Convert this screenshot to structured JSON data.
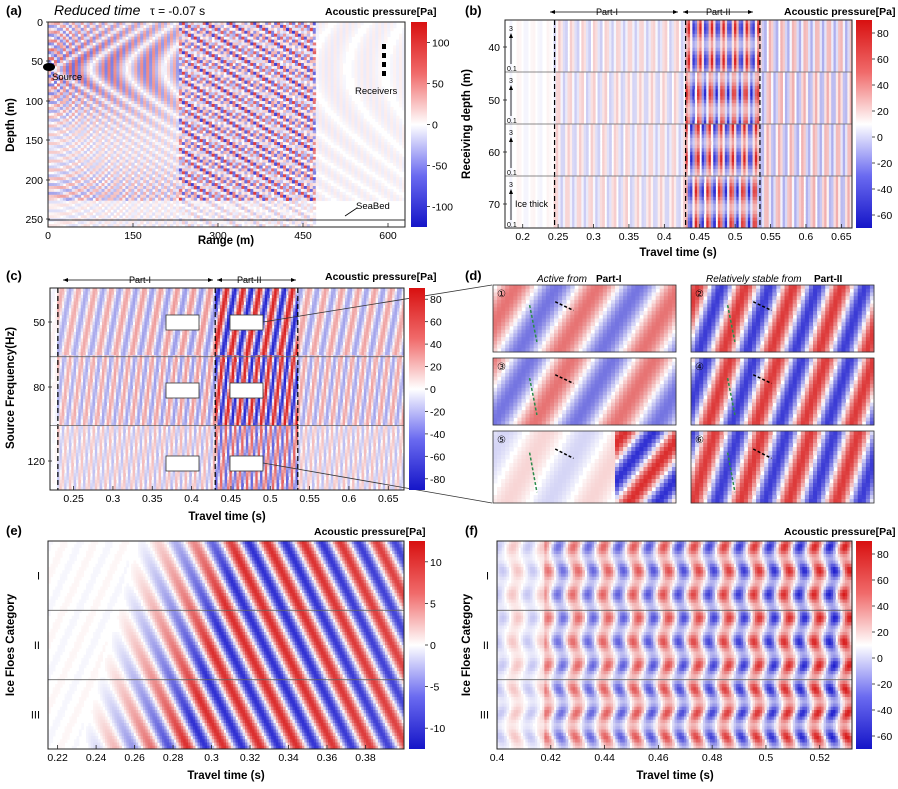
{
  "figure": {
    "colormap": {
      "low": "#1f1fd0",
      "mid": "#ffffff",
      "high": "#e01010"
    },
    "shared": {
      "cbar_title": "Acoustic pressure[Pa]",
      "xlabel_time": "Travel time (s)",
      "part1": "Part-I",
      "part2": "Part-II"
    },
    "panels": {
      "a": {
        "label": "(a)",
        "title_italic": "Reduced time",
        "title_tau": "τ = -0.07 s",
        "xlabel": "Range (m)",
        "ylabel": "Depth (m)",
        "xticks": [
          "0",
          "150",
          "300",
          "450",
          "600"
        ],
        "yticks": [
          "0",
          "50",
          "100",
          "150",
          "200",
          "250"
        ],
        "cbar_ticks": [
          "100",
          "50",
          "0",
          "-50",
          "-100"
        ],
        "source_label": "Source",
        "receivers_label": "Receivers",
        "seabed_label": "SeaBed"
      },
      "b": {
        "label": "(b)",
        "ylabel": "Receiving depth (m)",
        "xticks": [
          "0.2",
          "0.25",
          "0.3",
          "0.35",
          "0.4",
          "0.45",
          "0.5",
          "0.55",
          "0.6",
          "0.65"
        ],
        "yticks": [
          "40",
          "50",
          "60",
          "70"
        ],
        "cbar_ticks": [
          "80",
          "60",
          "40",
          "20",
          "0",
          "-20",
          "-40",
          "-60"
        ],
        "ice_small": [
          "3",
          "0.1"
        ],
        "ice_label": "Ice thick"
      },
      "c": {
        "label": "(c)",
        "ylabel": "Source Frequency(Hz)",
        "xticks": [
          "0.25",
          "0.3",
          "0.35",
          "0.4",
          "0.45",
          "0.5",
          "0.55",
          "0.6",
          "0.65"
        ],
        "yticks": [
          "50",
          "80",
          "120"
        ],
        "cbar_ticks": [
          "80",
          "60",
          "40",
          "20",
          "0",
          "-20",
          "-40",
          "-60",
          "-80"
        ]
      },
      "d": {
        "label": "(d)",
        "left_title": "Active from",
        "left_title_bold": "Part-I",
        "right_title": "Relatively stable from",
        "right_title_bold": "Part-II",
        "insets": [
          "①",
          "②",
          "③",
          "④",
          "⑤",
          "⑥"
        ]
      },
      "e": {
        "label": "(e)",
        "ylabel": "Ice Floes Category",
        "categories": [
          "I",
          "II",
          "III"
        ],
        "xticks": [
          "0.22",
          "0.24",
          "0.26",
          "0.28",
          "0.3",
          "0.32",
          "0.34",
          "0.36",
          "0.38"
        ],
        "cbar_ticks": [
          "10",
          "5",
          "0",
          "-5",
          "-10"
        ]
      },
      "f": {
        "label": "(f)",
        "ylabel": "Ice Floes Category",
        "categories": [
          "I",
          "II",
          "III"
        ],
        "xticks": [
          "0.4",
          "0.42",
          "0.44",
          "0.46",
          "0.48",
          "0.5",
          "0.52"
        ],
        "cbar_ticks": [
          "80",
          "60",
          "40",
          "20",
          "0",
          "-20",
          "-40",
          "-60"
        ]
      }
    }
  },
  "chart_data": [
    {
      "panel": "a",
      "type": "heatmap",
      "title": "Reduced time τ = -0.07 s",
      "xlabel": "Range (m)",
      "ylabel": "Depth (m)",
      "xlim": [
        0,
        630
      ],
      "ylim": [
        260,
        0
      ],
      "colorbar": "Acoustic pressure[Pa]",
      "clim": [
        -120,
        120
      ]
    },
    {
      "panel": "b",
      "type": "heatmap",
      "xlabel": "Travel time (s)",
      "ylabel": "Receiving depth (m)",
      "xlim": [
        0.175,
        0.665
      ],
      "colorbar": "Acoustic pressure[Pa]",
      "clim": [
        -75,
        90
      ],
      "regions": [
        "Part-I",
        "Part-II"
      ],
      "dividers": [
        0.245,
        0.43,
        0.535
      ]
    },
    {
      "panel": "c",
      "type": "heatmap",
      "xlabel": "Travel time (s)",
      "ylabel": "Source Frequency(Hz)",
      "xlim": [
        0.22,
        0.67
      ],
      "colorbar": "Acoustic pressure[Pa]",
      "clim": [
        -90,
        90
      ],
      "regions": [
        "Part-I",
        "Part-II"
      ],
      "dividers": [
        0.23,
        0.43,
        0.535
      ]
    },
    {
      "panel": "e",
      "type": "heatmap",
      "xlabel": "Travel time (s)",
      "ylabel": "Ice Floes Category",
      "xlim": [
        0.215,
        0.4
      ],
      "colorbar": "Acoustic pressure[Pa]",
      "clim": [
        -13,
        13
      ]
    },
    {
      "panel": "f",
      "type": "heatmap",
      "xlabel": "Travel time (s)",
      "ylabel": "Ice Floes Category",
      "xlim": [
        0.4,
        0.532
      ],
      "colorbar": "Acoustic pressure[Pa]",
      "clim": [
        -75,
        90
      ]
    }
  ]
}
